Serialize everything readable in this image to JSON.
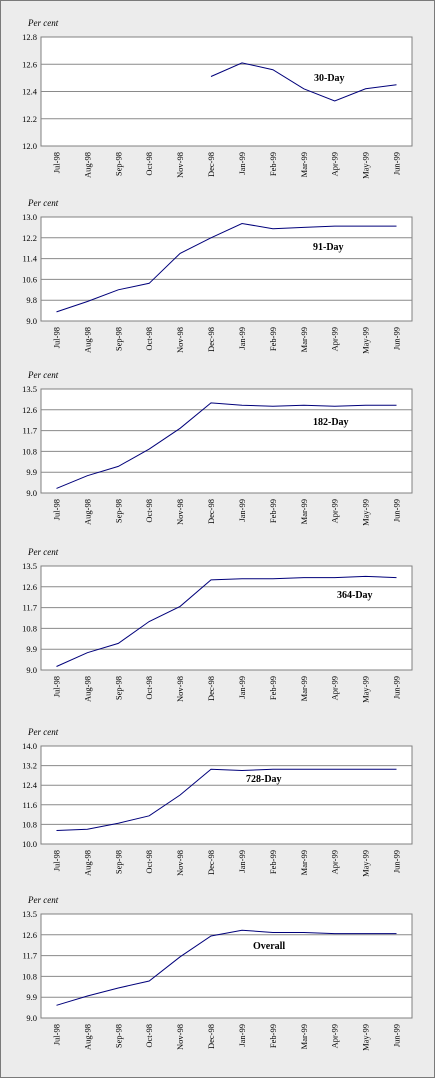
{
  "chart_data": [
    {
      "type": "line",
      "unit_label": "Per cent",
      "annotation": "30-Day",
      "categories": [
        "Jul-98",
        "Aug-98",
        "Sep-98",
        "Oct-98",
        "Nov-98",
        "Dec-98",
        "Jan-99",
        "Feb-99",
        "Mar-99",
        "Apr-99",
        "May-99",
        "Jun-99"
      ],
      "yticks": [
        "12.0",
        "12.2",
        "12.4",
        "12.6",
        "12.8"
      ],
      "ylim": [
        12.0,
        12.8
      ],
      "values": [
        null,
        null,
        null,
        null,
        null,
        12.51,
        12.61,
        12.56,
        12.42,
        12.33,
        12.42,
        12.45
      ]
    },
    {
      "type": "line",
      "unit_label": "Per cent",
      "annotation": "91-Day",
      "categories": [
        "Jul-98",
        "Aug-98",
        "Sep-98",
        "Oct-98",
        "Nov-98",
        "Dec-98",
        "Jan-99",
        "Feb-99",
        "Mar-99",
        "Apr-99",
        "May-99",
        "Jun-99"
      ],
      "yticks": [
        "9.0",
        "9.8",
        "10.6",
        "11.4",
        "12.2",
        "13.0"
      ],
      "ylim": [
        9.0,
        13.0
      ],
      "values": [
        9.35,
        9.75,
        10.2,
        10.45,
        11.6,
        12.2,
        12.75,
        12.55,
        12.6,
        12.65,
        12.65,
        12.65
      ]
    },
    {
      "type": "line",
      "unit_label": "Per cent",
      "annotation": "182-Day",
      "categories": [
        "Jul-98",
        "Aug-98",
        "Sep-98",
        "Oct-98",
        "Nov-98",
        "Dec-98",
        "Jan-99",
        "Feb-99",
        "Mar-99",
        "Apr-99",
        "May-99",
        "Jun-99"
      ],
      "yticks": [
        "9.0",
        "9.9",
        "10.8",
        "11.7",
        "12.6",
        "13.5"
      ],
      "ylim": [
        9.0,
        13.5
      ],
      "values": [
        9.2,
        9.75,
        10.15,
        10.9,
        11.8,
        12.9,
        12.8,
        12.75,
        12.8,
        12.75,
        12.8,
        12.8
      ]
    },
    {
      "type": "line",
      "unit_label": "Per cent",
      "annotation": "364-Day",
      "categories": [
        "Jul-98",
        "Aug-98",
        "Sep-98",
        "Oct-98",
        "Nov-98",
        "Dec-98",
        "Jan-99",
        "Feb-99",
        "Mar-99",
        "Apr-99",
        "May-99",
        "Jun-99"
      ],
      "yticks": [
        "9.0",
        "9.9",
        "10.8",
        "11.7",
        "12.6",
        "13.5"
      ],
      "ylim": [
        9.0,
        13.5
      ],
      "values": [
        9.15,
        9.75,
        10.15,
        11.1,
        11.75,
        12.9,
        12.95,
        12.95,
        13.0,
        13.0,
        13.05,
        13.0
      ]
    },
    {
      "type": "line",
      "unit_label": "Per cent",
      "annotation": "728-Day",
      "categories": [
        "Jul-98",
        "Aug-98",
        "Sep-98",
        "Oct-98",
        "Nov-98",
        "Dec-98",
        "Jan-99",
        "Feb-99",
        "Mar-99",
        "Apr-99",
        "May-99",
        "Jun-99"
      ],
      "yticks": [
        "10.0",
        "10.8",
        "11.6",
        "12.4",
        "13.2",
        "14.0"
      ],
      "ylim": [
        10.0,
        14.0
      ],
      "values": [
        10.55,
        10.6,
        10.85,
        11.15,
        12.0,
        13.05,
        13.0,
        13.05,
        13.05,
        13.05,
        13.05,
        13.05
      ]
    },
    {
      "type": "line",
      "unit_label": "Per cent",
      "annotation": "Overall",
      "categories": [
        "Jul-98",
        "Aug-98",
        "Sep-98",
        "Oct-98",
        "Nov-98",
        "Dec-98",
        "Jan-99",
        "Feb-99",
        "Mar-99",
        "Apr-99",
        "May-99",
        "Jun-99"
      ],
      "yticks": [
        "9.0",
        "9.9",
        "10.8",
        "11.7",
        "12.6",
        "13.5"
      ],
      "ylim": [
        9.0,
        13.5
      ],
      "values": [
        9.55,
        9.95,
        10.3,
        10.6,
        11.65,
        12.55,
        12.8,
        12.7,
        12.7,
        12.65,
        12.65,
        12.65
      ]
    }
  ]
}
